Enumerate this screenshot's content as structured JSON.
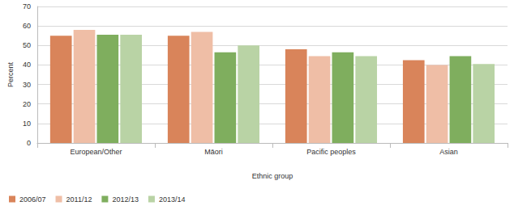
{
  "chart_data": {
    "type": "bar",
    "x_label": "Ethnic group",
    "y_label": "Percent",
    "categories": [
      "European/Other",
      "Māori",
      "Pacific peoples",
      "Asian"
    ],
    "series": [
      {
        "name": "2006/07",
        "color": "#d9845a",
        "values": [
          55,
          55,
          48,
          42.5
        ]
      },
      {
        "name": "2011/12",
        "color": "#efbea6",
        "values": [
          58,
          57,
          44.5,
          40
        ]
      },
      {
        "name": "2012/13",
        "color": "#7fae5e",
        "values": [
          55.5,
          46.5,
          46.5,
          44.5
        ]
      },
      {
        "name": "2013/14",
        "color": "#b9d3a5",
        "values": [
          55.5,
          50,
          44.5,
          40.5
        ]
      }
    ],
    "ylim": [
      0,
      70
    ],
    "yticks": [
      0,
      10,
      20,
      30,
      40,
      50,
      60,
      70
    ],
    "grid": true,
    "legend": "bottom-left"
  }
}
